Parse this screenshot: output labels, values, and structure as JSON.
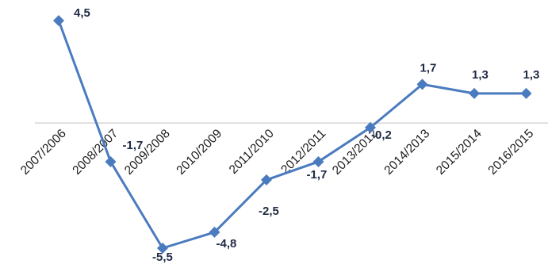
{
  "chart_data": {
    "type": "line",
    "categories": [
      "2007/2006",
      "2008/2007",
      "2009/2008",
      "2010/2009",
      "2011/2010",
      "2012/2011",
      "2013/2012",
      "2014/2013",
      "2015/2014",
      "2016/2015"
    ],
    "series": [
      {
        "values": [
          4.5,
          -1.7,
          -5.5,
          -4.8,
          -2.5,
          -1.7,
          -0.2,
          1.7,
          1.3,
          1.3
        ],
        "labels": [
          "4,5",
          "-1,7",
          "-5,5",
          "-4,8",
          "-2,5",
          "-1,7",
          "-0,2",
          "1,7",
          "1,3",
          "1,3"
        ]
      }
    ],
    "title": "",
    "xlabel": "",
    "ylabel": "",
    "ylim": [
      -6,
      5
    ],
    "grid": false,
    "legend": "none",
    "line_color": "#4a7bbf",
    "marker": "diamond",
    "axis_color": "#bfbfbf"
  }
}
